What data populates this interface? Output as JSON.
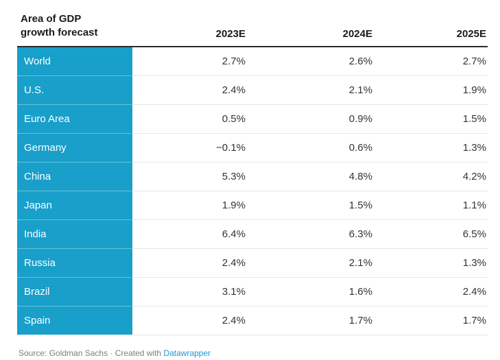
{
  "header": {
    "title": "Area of GDP\ngrowth forecast"
  },
  "table": {
    "columns": [
      "2023E",
      "2024E",
      "2025E"
    ],
    "rows": [
      {
        "label": "World",
        "values": [
          "2.7%",
          "2.6%",
          "2.7%"
        ]
      },
      {
        "label": "U.S.",
        "values": [
          "2.4%",
          "2.1%",
          "1.9%"
        ]
      },
      {
        "label": "Euro Area",
        "values": [
          "0.5%",
          "0.9%",
          "1.5%"
        ]
      },
      {
        "label": "Germany",
        "values": [
          "−0.1%",
          "0.6%",
          "1.3%"
        ]
      },
      {
        "label": "China",
        "values": [
          "5.3%",
          "4.8%",
          "4.2%"
        ]
      },
      {
        "label": "Japan",
        "values": [
          "1.9%",
          "1.5%",
          "1.1%"
        ]
      },
      {
        "label": "India",
        "values": [
          "6.4%",
          "6.3%",
          "6.5%"
        ]
      },
      {
        "label": "Russia",
        "values": [
          "2.4%",
          "2.1%",
          "1.3%"
        ]
      },
      {
        "label": "Brazil",
        "values": [
          "3.1%",
          "1.6%",
          "2.4%"
        ]
      },
      {
        "label": "Spain",
        "values": [
          "2.4%",
          "1.7%",
          "1.7%"
        ]
      }
    ]
  },
  "footer": {
    "text": "Source: Goldman Sachs · Created with",
    "link_label": "Datawrapper"
  },
  "colors": {
    "accent": "#189fca",
    "link": "#1e96d0",
    "header_rule": "#2b2b2b",
    "row_divider": "#e7e7e7"
  },
  "chart_data": {
    "type": "table",
    "title": "Area of GDP growth forecast",
    "categories": [
      "World",
      "U.S.",
      "Euro Area",
      "Germany",
      "China",
      "Japan",
      "India",
      "Russia",
      "Brazil",
      "Spain"
    ],
    "series": [
      {
        "name": "2023E",
        "values": [
          2.7,
          2.4,
          0.5,
          -0.1,
          5.3,
          1.9,
          6.4,
          2.4,
          3.1,
          2.4
        ]
      },
      {
        "name": "2024E",
        "values": [
          2.6,
          2.1,
          0.9,
          0.6,
          4.8,
          1.5,
          6.3,
          2.1,
          1.6,
          1.7
        ]
      },
      {
        "name": "2025E",
        "values": [
          2.7,
          1.9,
          1.5,
          1.3,
          4.2,
          1.1,
          6.5,
          1.3,
          2.4,
          1.7
        ]
      }
    ],
    "unit": "%",
    "source": "Goldman Sachs"
  }
}
